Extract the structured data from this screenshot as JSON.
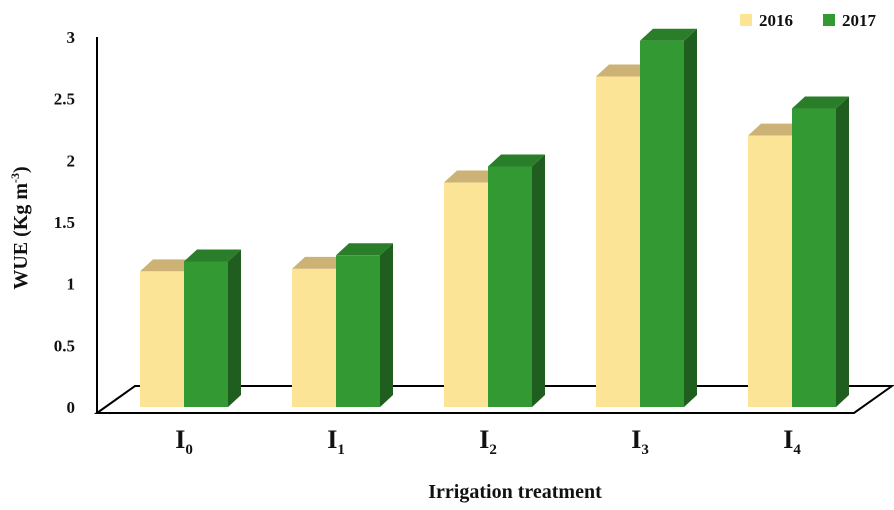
{
  "chart_data": {
    "type": "bar",
    "style": "3d-clustered",
    "categories": [
      {
        "base": "I",
        "sub": "0"
      },
      {
        "base": "I",
        "sub": "1"
      },
      {
        "base": "I",
        "sub": "2"
      },
      {
        "base": "I",
        "sub": "3"
      },
      {
        "base": "I",
        "sub": "4"
      }
    ],
    "series": [
      {
        "name": "2016",
        "color": "#FCE497",
        "values": [
          1.1,
          1.12,
          1.82,
          2.68,
          2.2
        ]
      },
      {
        "name": "2017",
        "color": "#339933",
        "values": [
          1.18,
          1.23,
          1.95,
          2.97,
          2.42
        ]
      }
    ],
    "ylabel": {
      "main": "WUE (Kg m",
      "sup": "-3",
      "end": ")"
    },
    "xlabel": "Irrigation treatment",
    "ylim": [
      0,
      3
    ],
    "yticks": [
      "0",
      "0.5",
      "1",
      "1.5",
      "2",
      "2.5",
      "3"
    ],
    "legend_position": "top-right",
    "grid": false
  }
}
